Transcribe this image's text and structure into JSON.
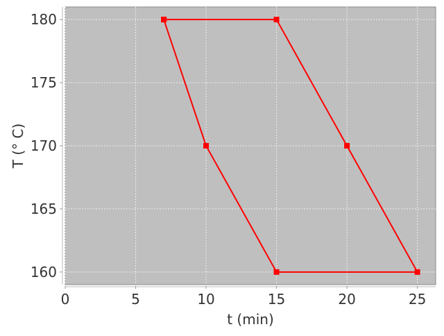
{
  "chart_data": {
    "type": "line",
    "title": "",
    "xlabel": "t (min)",
    "ylabel": "T (° C)",
    "xlim": [
      0,
      26.3
    ],
    "ylim": [
      159,
      181
    ],
    "xticks": [
      0,
      5,
      10,
      15,
      20,
      25
    ],
    "yticks": [
      160,
      165,
      170,
      175,
      180
    ],
    "grid": true,
    "background_color": "#bfbfbf",
    "series": [
      {
        "color": "#ff0000",
        "marker": "square",
        "x": [
          7,
          15,
          20,
          25,
          15,
          10,
          7
        ],
        "y": [
          180,
          180,
          170,
          160,
          160,
          170,
          180
        ]
      }
    ]
  }
}
